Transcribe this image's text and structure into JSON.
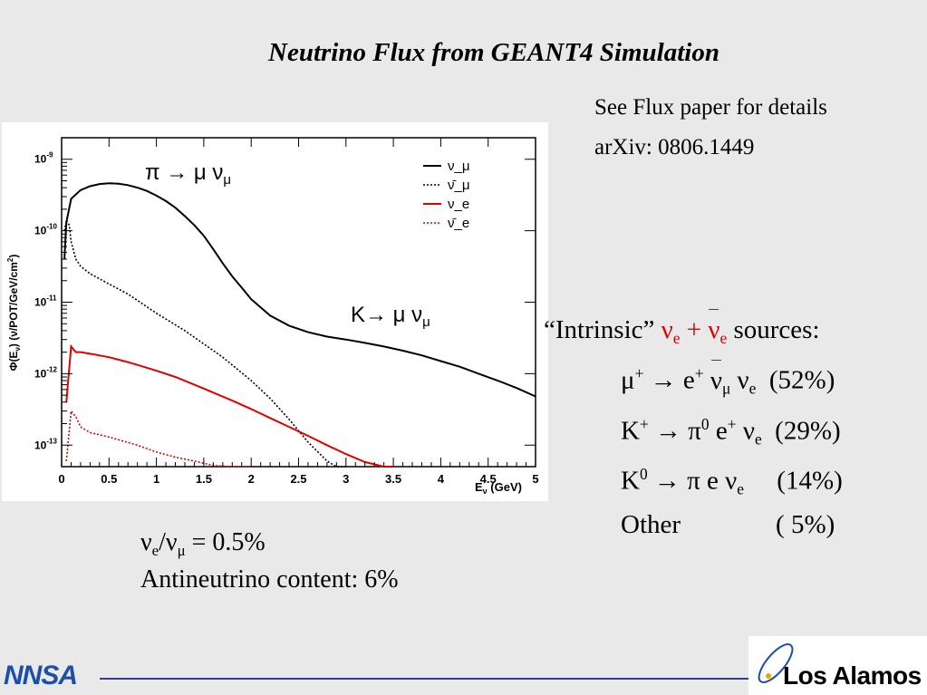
{
  "slide": {
    "title": "Neutrino Flux from GEANT4 Simulation",
    "ref_line1": "See Flux paper for details",
    "ref_line2": "arXiv: 0806.1449"
  },
  "ratio": {
    "text": "= 0.5%",
    "antineutrino": "Antineutrino content: 6%"
  },
  "intrinsic": {
    "quote": "“Intrinsic”",
    "plus": "+",
    "sources": "sources:",
    "rows": [
      {
        "pct": "(52%)"
      },
      {
        "pct": "(29%)"
      },
      {
        "pct": "(14%)"
      },
      {
        "label": "Other",
        "pct": "(  5%)"
      }
    ]
  },
  "logos": {
    "left": "NNSA",
    "right": "Los Alamos"
  },
  "colors": {
    "red": "#e00000",
    "footer_line": "#3a3a8e",
    "nnsa_blue": "#1d4fa8"
  },
  "chart_data": {
    "type": "line",
    "xlabel": "E_ν (GeV)",
    "ylabel": "Φ(E_ν) (ν/POT/GeV/cm²)",
    "xlim": [
      0,
      5
    ],
    "ylim": [
      5e-14,
      2e-09
    ],
    "yscale": "log",
    "x_ticks": [
      "0",
      "0.5",
      "1",
      "1.5",
      "2",
      "2.5",
      "3",
      "3.5",
      "4",
      "4.5",
      "5"
    ],
    "y_ticks": [
      1e-13,
      1e-12,
      1e-11,
      1e-10,
      1e-09
    ],
    "legend_position": "top-right",
    "annotations": [
      "π → μ ν_μ",
      "K→ μ ν_μ"
    ],
    "series": [
      {
        "name": "ν_μ",
        "color": "#000000",
        "style": "solid",
        "x": [
          0.03,
          0.05,
          0.1,
          0.2,
          0.3,
          0.4,
          0.5,
          0.6,
          0.7,
          0.8,
          0.9,
          1.0,
          1.1,
          1.2,
          1.3,
          1.4,
          1.5,
          1.6,
          1.7,
          1.8,
          1.9,
          2.0,
          2.2,
          2.4,
          2.6,
          2.8,
          3.0,
          3.2,
          3.4,
          3.6,
          3.8,
          4.0,
          4.2,
          4.4,
          4.6,
          4.8,
          5.0
        ],
        "y": [
          4e-11,
          1.3e-10,
          2.8e-10,
          3.7e-10,
          4.2e-10,
          4.5e-10,
          4.6e-10,
          4.55e-10,
          4.35e-10,
          4e-10,
          3.6e-10,
          3.1e-10,
          2.6e-10,
          2.1e-10,
          1.6e-10,
          1.2e-10,
          8.5e-11,
          5.5e-11,
          3.5e-11,
          2.3e-11,
          1.6e-11,
          1.1e-11,
          6.5e-12,
          4.7e-12,
          3.8e-12,
          3.3e-12,
          3e-12,
          2.7e-12,
          2.4e-12,
          2.1e-12,
          1.8e-12,
          1.5e-12,
          1.25e-12,
          1e-12,
          8e-13,
          6.3e-13,
          4.8e-13
        ]
      },
      {
        "name": "ν̄_μ",
        "color": "#000000",
        "style": "dotted",
        "x": [
          0.03,
          0.05,
          0.08,
          0.1,
          0.15,
          0.2,
          0.3,
          0.5,
          0.7,
          1.0,
          1.3,
          1.5,
          1.7,
          2.0,
          2.2,
          2.4,
          2.6,
          2.8,
          2.9,
          3.0
        ],
        "y": [
          1e-10,
          1.4e-10,
          1.2e-10,
          7e-11,
          4e-11,
          3.2e-11,
          2.5e-11,
          1.8e-11,
          1.3e-11,
          7e-12,
          4e-12,
          2.6e-12,
          1.7e-12,
          8e-13,
          4.5e-13,
          2.3e-13,
          1.1e-13,
          6e-14,
          4.5e-14,
          3.5e-14
        ]
      },
      {
        "name": "ν_e",
        "color": "#e00000",
        "style": "solid",
        "x": [
          0.05,
          0.1,
          0.15,
          0.2,
          0.3,
          0.5,
          0.7,
          1.0,
          1.2,
          1.5,
          1.8,
          2.0,
          2.2,
          2.4,
          2.6,
          2.8,
          3.0,
          3.2,
          3.4,
          3.5
        ],
        "y": [
          4e-13,
          2.4e-12,
          2e-12,
          2e-12,
          1.9e-12,
          1.7e-12,
          1.45e-12,
          1.1e-12,
          9e-13,
          6.2e-13,
          4.2e-13,
          3.2e-13,
          2.4e-13,
          1.8e-13,
          1.35e-13,
          1e-13,
          7.5e-14,
          5.8e-14,
          4.8e-14,
          4.5e-14
        ]
      },
      {
        "name": "ν̄_e",
        "color": "#e00000",
        "style": "dotted",
        "x": [
          0.05,
          0.1,
          0.15,
          0.2,
          0.3,
          0.5,
          0.8,
          1.0,
          1.2,
          1.4,
          1.6,
          1.8,
          1.9,
          2.0
        ],
        "y": [
          6e-14,
          3e-13,
          2.5e-13,
          1.8e-13,
          1.5e-13,
          1.3e-13,
          1e-13,
          8e-14,
          6.8e-14,
          6e-14,
          5.2e-14,
          4.7e-14,
          4.5e-14,
          4.4e-14
        ]
      }
    ]
  }
}
